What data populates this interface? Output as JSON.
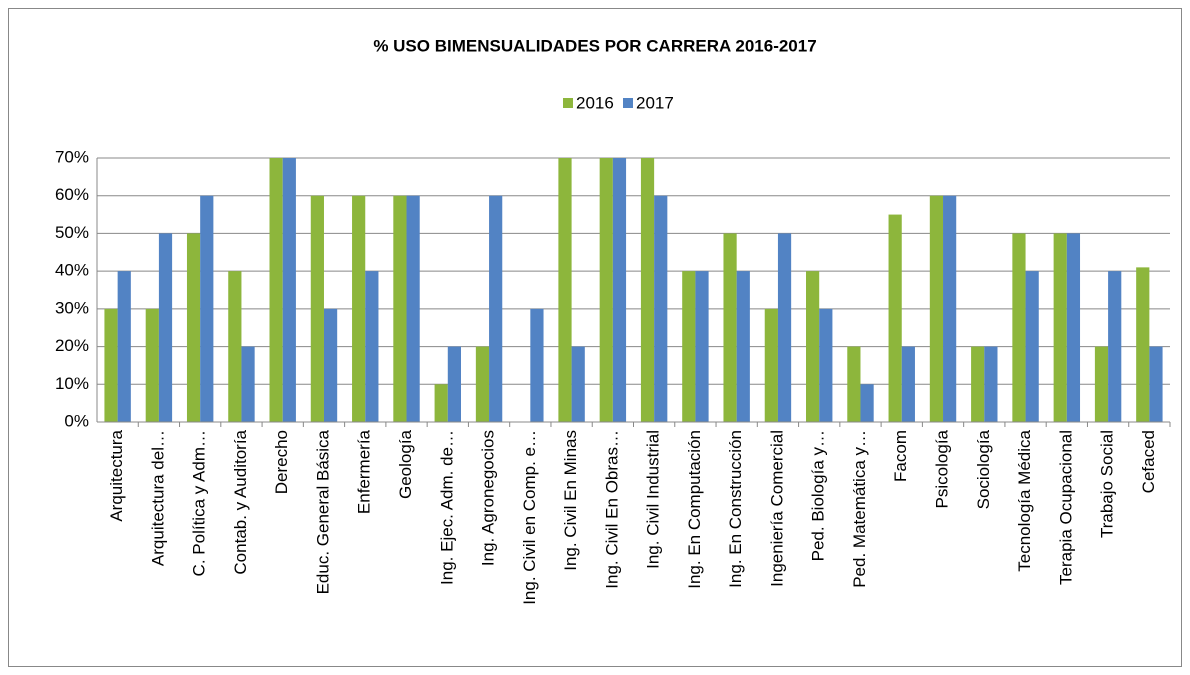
{
  "chart_data": {
    "type": "bar",
    "title": "% USO BIMENSUALIDADES POR CARRERA 2016-2017",
    "categories": [
      "Arquitectura",
      "Arquitectura del…",
      "C. Política y Adm…",
      "Contab. y Auditoría",
      "Derecho",
      "Educ. General Básica",
      "Enfermería",
      "Geología",
      "Ing. Ejec. Adm. de…",
      "Ing. Agronegocios",
      "Ing. Civil en Comp. e…",
      "Ing. Civil En Minas",
      "Ing. Civil En Obras…",
      "Ing. Civil Industrial",
      "Ing. En Computación",
      "Ing. En Construcción",
      "Ingeniería Comercial",
      "Ped. Biología y…",
      "Ped. Matemática y…",
      "Facom",
      "Psicología",
      "Sociología",
      "Tecnología Médica",
      "Terapia Ocupacional",
      "Trabajo Social",
      "Cefaced"
    ],
    "series": [
      {
        "name": "2016",
        "color": "#8db63c",
        "values": [
          30,
          30,
          50,
          40,
          70,
          60,
          60,
          60,
          10,
          20,
          0,
          70,
          70,
          70,
          40,
          50,
          30,
          40,
          20,
          55,
          60,
          20,
          50,
          50,
          20,
          41
        ]
      },
      {
        "name": "2017",
        "color": "#5283c4",
        "values": [
          40,
          50,
          60,
          20,
          70,
          30,
          40,
          60,
          20,
          60,
          30,
          20,
          70,
          60,
          40,
          40,
          50,
          30,
          10,
          20,
          60,
          20,
          40,
          50,
          40,
          20
        ]
      }
    ],
    "ylim": [
      0,
      70
    ],
    "yticks": [
      {
        "value": 0,
        "label": "0%"
      },
      {
        "value": 10,
        "label": "10%"
      },
      {
        "value": 20,
        "label": "20%"
      },
      {
        "value": 30,
        "label": "30%"
      },
      {
        "value": 40,
        "label": "40%"
      },
      {
        "value": 50,
        "label": "50%"
      },
      {
        "value": 60,
        "label": "60%"
      },
      {
        "value": 70,
        "label": "70%"
      }
    ],
    "grid": true,
    "legend": "top"
  }
}
